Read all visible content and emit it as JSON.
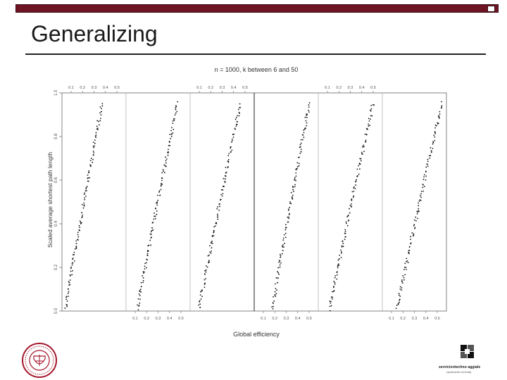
{
  "slide": {
    "title": "Generalizing",
    "bar_color": "#6e1423"
  },
  "logos": {
    "partner_text": "serviciontechno aggiale",
    "partner_subtext": "rapidamente university"
  },
  "chart_data": {
    "type": "scatter",
    "title": "n = 1000, k between 6 and 50",
    "xlabel": "Global efficiency",
    "ylabel": "Scaled average shortest path length",
    "ylim": [
      0,
      1.0
    ],
    "yticks": [
      "0.0",
      "0.2",
      "0.4",
      "0.6",
      "0.8",
      "1.0"
    ],
    "xticks": [
      "0.1",
      "0.2",
      "0.3",
      "0.4",
      "0.5"
    ],
    "grid": false,
    "panels": [
      {
        "xlim": [
          0.02,
          0.58
        ],
        "x_start": 0.05,
        "x_end": 0.37,
        "tick_axis": "top"
      },
      {
        "xlim": [
          0.02,
          0.58
        ],
        "x_start": 0.12,
        "x_end": 0.47,
        "tick_axis": "bottom"
      },
      {
        "xlim": [
          0.02,
          0.58
        ],
        "x_start": 0.1,
        "x_end": 0.46,
        "tick_axis": "top"
      },
      {
        "xlim": [
          0.02,
          0.58
        ],
        "x_start": 0.18,
        "x_end": 0.5,
        "tick_axis": "bottom"
      },
      {
        "xlim": [
          0.02,
          0.58
        ],
        "x_start": 0.12,
        "x_end": 0.5,
        "tick_axis": "top"
      },
      {
        "xlim": [
          0.02,
          0.58
        ],
        "x_start": 0.15,
        "x_end": 0.54,
        "tick_axis": "bottom"
      }
    ]
  }
}
